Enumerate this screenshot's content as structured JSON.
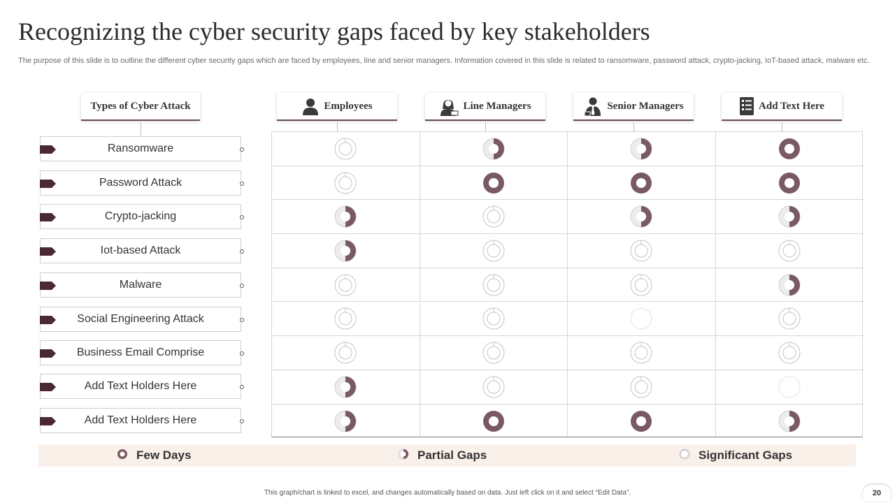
{
  "title": "Recognizing the cyber security gaps faced by key stakeholders",
  "subtitle": "The purpose of this slide is to outline the different cyber security gaps which are faced by employees, line and senior managers. Information covered in this slide is related to ransomware, password attack, crypto-jacking, IoT-based attack, malware etc.",
  "header": {
    "types_label": "Types of Cyber Attack",
    "columns": [
      {
        "label": "Employees",
        "icon": "person-icon"
      },
      {
        "label": "Line Managers",
        "icon": "woman-laptop-icon"
      },
      {
        "label": "Senior Managers",
        "icon": "businessman-icon"
      },
      {
        "label": "Add Text Here",
        "icon": "checklist-icon"
      }
    ]
  },
  "rows": [
    {
      "label": "Ransomware",
      "levels": [
        "significant",
        "partial",
        "partial",
        "few"
      ]
    },
    {
      "label": "Password Attack",
      "levels": [
        "significant",
        "few",
        "few",
        "few"
      ]
    },
    {
      "label": "Crypto-jacking",
      "levels": [
        "partial",
        "significant",
        "partial",
        "partial"
      ]
    },
    {
      "label": "Iot-based Attack",
      "levels": [
        "partial",
        "significant",
        "significant",
        "significant"
      ]
    },
    {
      "label": "Malware",
      "levels": [
        "significant",
        "significant",
        "significant",
        "partial"
      ]
    },
    {
      "label": "Social Engineering Attack",
      "levels": [
        "significant",
        "significant",
        "none",
        "significant"
      ]
    },
    {
      "label": "Business Email Comprise",
      "levels": [
        "significant",
        "significant",
        "significant",
        "significant"
      ]
    },
    {
      "label": "Add Text Holders Here",
      "levels": [
        "partial",
        "significant",
        "significant",
        "none"
      ]
    },
    {
      "label": "Add Text Holders Here",
      "levels": [
        "partial",
        "few",
        "few",
        "partial"
      ]
    }
  ],
  "legend": {
    "few": "Few Days",
    "partial": "Partial Gaps",
    "significant": "Significant Gaps"
  },
  "colors": {
    "accent": "#7a5a62",
    "tag": "#4a2a30",
    "legend_bg": "#faf0ea"
  },
  "footer": "This graph/chart is linked to excel, and changes automatically based on data. Just left click on it and select “Edit Data”.",
  "page_number": "20"
}
